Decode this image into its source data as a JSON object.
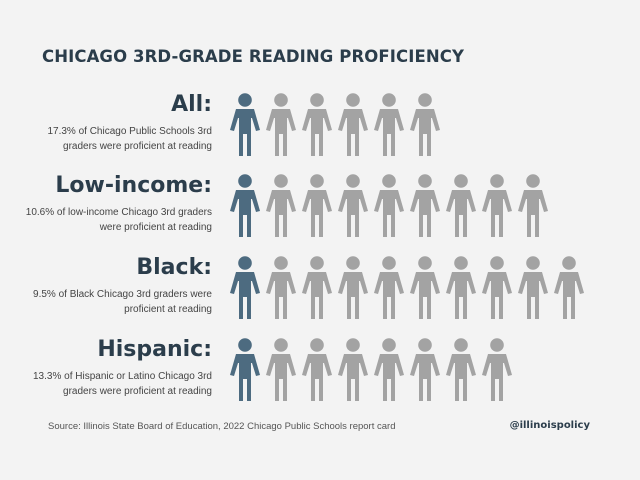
{
  "title": "CHICAGO 3RD-GRADE READING PROFICIENCY",
  "rows": [
    {
      "label": "All:",
      "description": "17.3% of Chicago Public Schools 3rd graders were proficient at reading",
      "icons_total": 6,
      "icons_highlighted": 1
    },
    {
      "label": "Low-income:",
      "description": "10.6% of low-income Chicago 3rd graders were proficient at reading",
      "icons_total": 9,
      "icons_highlighted": 1
    },
    {
      "label": "Black:",
      "description": "9.5% of Black Chicago 3rd graders were proficient at reading",
      "icons_total": 10,
      "icons_highlighted": 1
    },
    {
      "label": "Hispanic:",
      "description": "13.3% of Hispanic or Latino Chicago 3rd graders were proficient at reading",
      "icons_total": 8,
      "icons_highlighted": 1
    }
  ],
  "source": "Source: Illinois State Board of Education, 2022 Chicago Public Schools report card",
  "handle": "@illinoispolicy",
  "colors": {
    "background": "#f3f3f3",
    "highlight_person": "#4d6b80",
    "other_person": "#a3a3a3",
    "heading_text": "#2b3d4b"
  },
  "chart_data": {
    "type": "pictograph",
    "title": "CHICAGO 3RD-GRADE READING PROFICIENCY",
    "categories": [
      "All:",
      "Low-income:",
      "Black:",
      "Hispanic:"
    ],
    "values": [
      17.3,
      10.6,
      9.5,
      13.3
    ],
    "unit": "%",
    "icons_total": [
      6,
      9,
      10,
      8
    ],
    "icons_highlighted": [
      1,
      1,
      1,
      1
    ],
    "grid": false,
    "legend": "none"
  }
}
